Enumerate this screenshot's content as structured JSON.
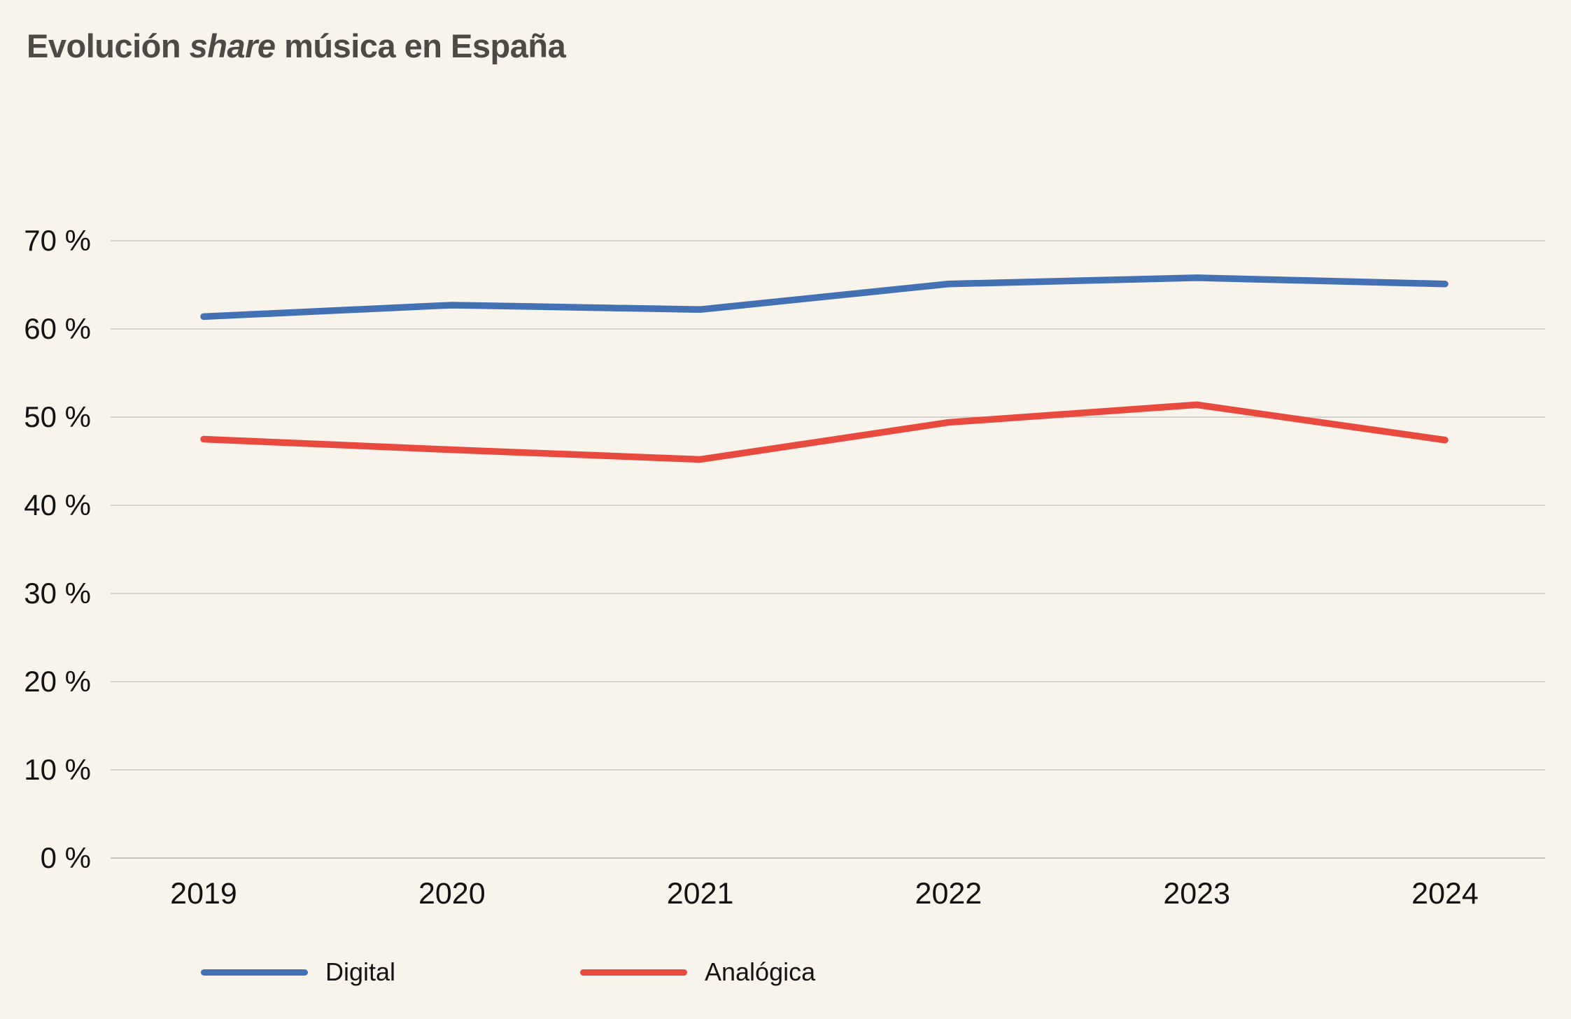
{
  "title": {
    "part1": "Evolución ",
    "part2_italic": "share",
    "part3": " música en España",
    "color": "#4C4A46"
  },
  "chart_data": {
    "type": "line",
    "title": "Evolución share música en España",
    "x": [
      "2019",
      "2020",
      "2021",
      "2022",
      "2023",
      "2024"
    ],
    "series": [
      {
        "name": "Digital",
        "color": "#4470B4",
        "values": [
          61.4,
          62.7,
          62.2,
          65.1,
          65.8,
          65.1
        ]
      },
      {
        "name": "Analógica",
        "color": "#E84A3F",
        "values": [
          47.5,
          46.3,
          45.2,
          49.4,
          51.4,
          47.4
        ]
      }
    ],
    "xlabel": "",
    "ylabel": "",
    "ylim": [
      0,
      70
    ],
    "yticks": [
      0,
      10,
      20,
      30,
      40,
      50,
      60,
      70
    ],
    "ytick_suffix": " %",
    "grid": "horizontal-only",
    "gridline_color": "#C9C7C1",
    "zero_line_color": "#B7B5AE",
    "axis_label_color": "#121212",
    "legend_position": "bottom-left",
    "background_color": "#F8F4EB",
    "line_width": 9.5
  },
  "legend": {
    "items": [
      {
        "label": "Digital"
      },
      {
        "label": "Analógica"
      }
    ]
  }
}
